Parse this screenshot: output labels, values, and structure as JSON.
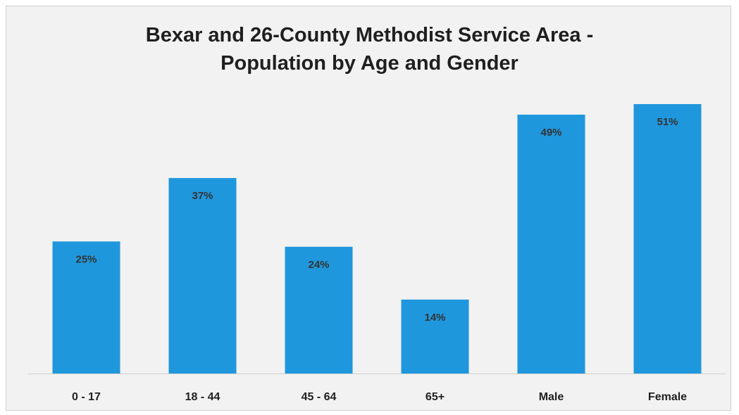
{
  "chart_data": {
    "type": "bar",
    "title_lines": [
      "Bexar and 26-County Methodist Service Area -",
      "Population by Age and Gender"
    ],
    "categories": [
      "0 - 17",
      "18 - 44",
      "45 - 64",
      "65+",
      "Male",
      "Female"
    ],
    "values": [
      25,
      37,
      24,
      14,
      49,
      51
    ],
    "data_labels": [
      "25%",
      "37%",
      "24%",
      "14%",
      "49%",
      "51%"
    ],
    "ylim": [
      0,
      51
    ],
    "grid": false,
    "legend": "none",
    "bar_color": "#1f97dd"
  }
}
